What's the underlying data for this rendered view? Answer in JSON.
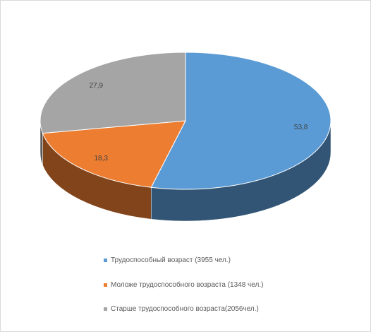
{
  "chart_data": {
    "type": "pie",
    "categories": [
      "Трудоспособный возраст (3955 чел.)",
      "Моложе трудоспособного возраста (1348 чел.)",
      "Старше трудоспособного возраста(2056чел.)"
    ],
    "values": [
      53.8,
      18.3,
      27.9
    ],
    "value_labels": [
      "53,8",
      "18,3",
      "27,9"
    ],
    "colors": [
      "#5b9bd5",
      "#ed7d31",
      "#a5a5a5"
    ]
  }
}
